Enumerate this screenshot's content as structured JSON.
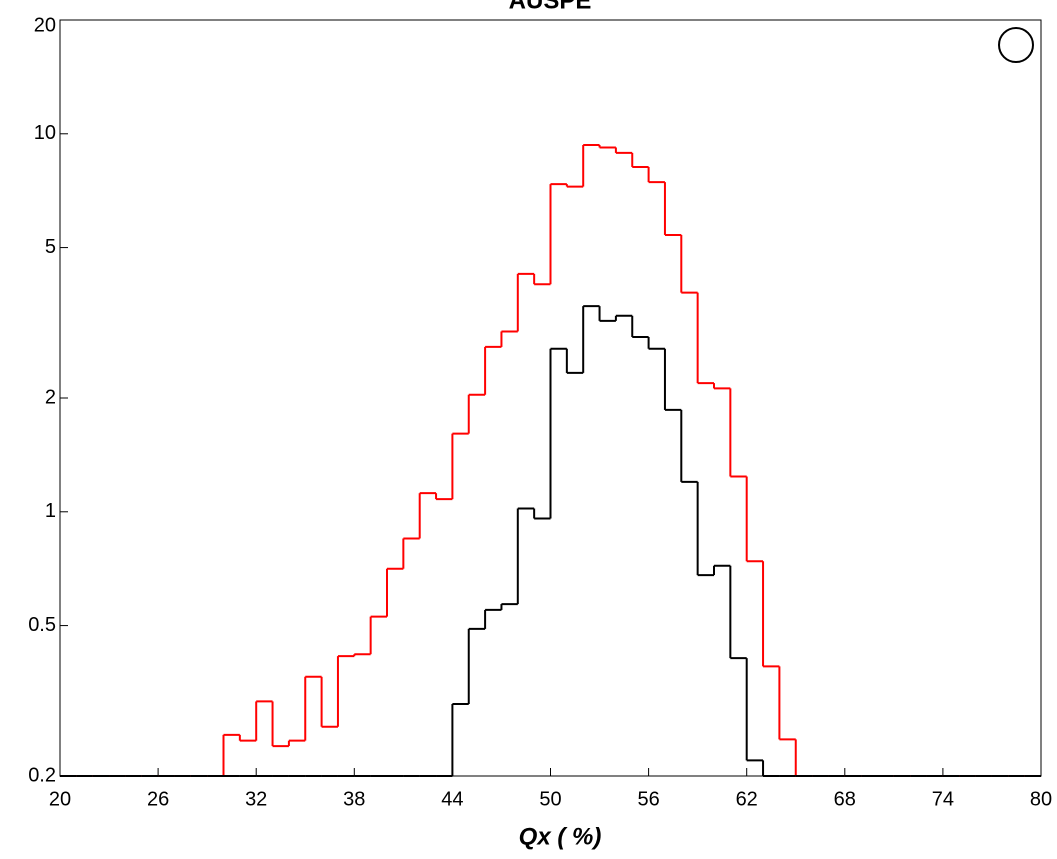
{
  "chart_data": {
    "type": "histogram",
    "title": "AUSPE",
    "x_label": "Qx ( %)",
    "bins": [
      20,
      21,
      22,
      23,
      24,
      25,
      26,
      27,
      28,
      29,
      30,
      31,
      32,
      33,
      34,
      35,
      36,
      37,
      38,
      39,
      40,
      41,
      42,
      43,
      44,
      45,
      46,
      47,
      48,
      49,
      50,
      51,
      52,
      53,
      54,
      55,
      56,
      57,
      58,
      59,
      60,
      61,
      62,
      63,
      64,
      65,
      66,
      67,
      68,
      69,
      70,
      71,
      72,
      73,
      74,
      75,
      76,
      77,
      78,
      79,
      80
    ],
    "series": [
      {
        "color": "#ff0000",
        "values": [
          0,
          0,
          0,
          0,
          0,
          0,
          0,
          0,
          0,
          0,
          0.257,
          0.248,
          0.315,
          0.24,
          0.248,
          0.366,
          0.27,
          0.415,
          0.42,
          0.528,
          0.707,
          0.85,
          1.12,
          1.08,
          1.61,
          2.04,
          2.73,
          3.0,
          4.26,
          4.0,
          7.36,
          7.25,
          9.34,
          9.2,
          8.9,
          8.17,
          7.45,
          5.4,
          3.8,
          2.19,
          2.12,
          1.24,
          0.74,
          0.39,
          0.25,
          0,
          0,
          0,
          0,
          0,
          0,
          0,
          0,
          0,
          0,
          0,
          0,
          0,
          0,
          0
        ]
      },
      {
        "color": "#000000",
        "values": [
          0,
          0,
          0,
          0,
          0,
          0,
          0,
          0,
          0,
          0,
          0,
          0,
          0,
          0,
          0,
          0,
          0,
          0,
          0,
          0,
          0,
          0,
          0,
          0,
          0.31,
          0.49,
          0.55,
          0.57,
          1.02,
          0.96,
          2.7,
          2.33,
          3.5,
          3.2,
          3.3,
          2.9,
          2.7,
          1.86,
          1.2,
          0.68,
          0.72,
          0.41,
          0.22,
          0,
          0,
          0,
          0,
          0,
          0,
          0,
          0,
          0,
          0,
          0,
          0,
          0,
          0,
          0,
          0,
          0
        ]
      }
    ],
    "xlim": [
      20,
      80
    ],
    "xticks": [
      20,
      26,
      32,
      38,
      44,
      50,
      56,
      62,
      68,
      74,
      80
    ],
    "ylim": [
      0.2,
      20
    ],
    "yticks": [
      0.2,
      0.5,
      1,
      2,
      5,
      10,
      20
    ],
    "log_y": true
  }
}
